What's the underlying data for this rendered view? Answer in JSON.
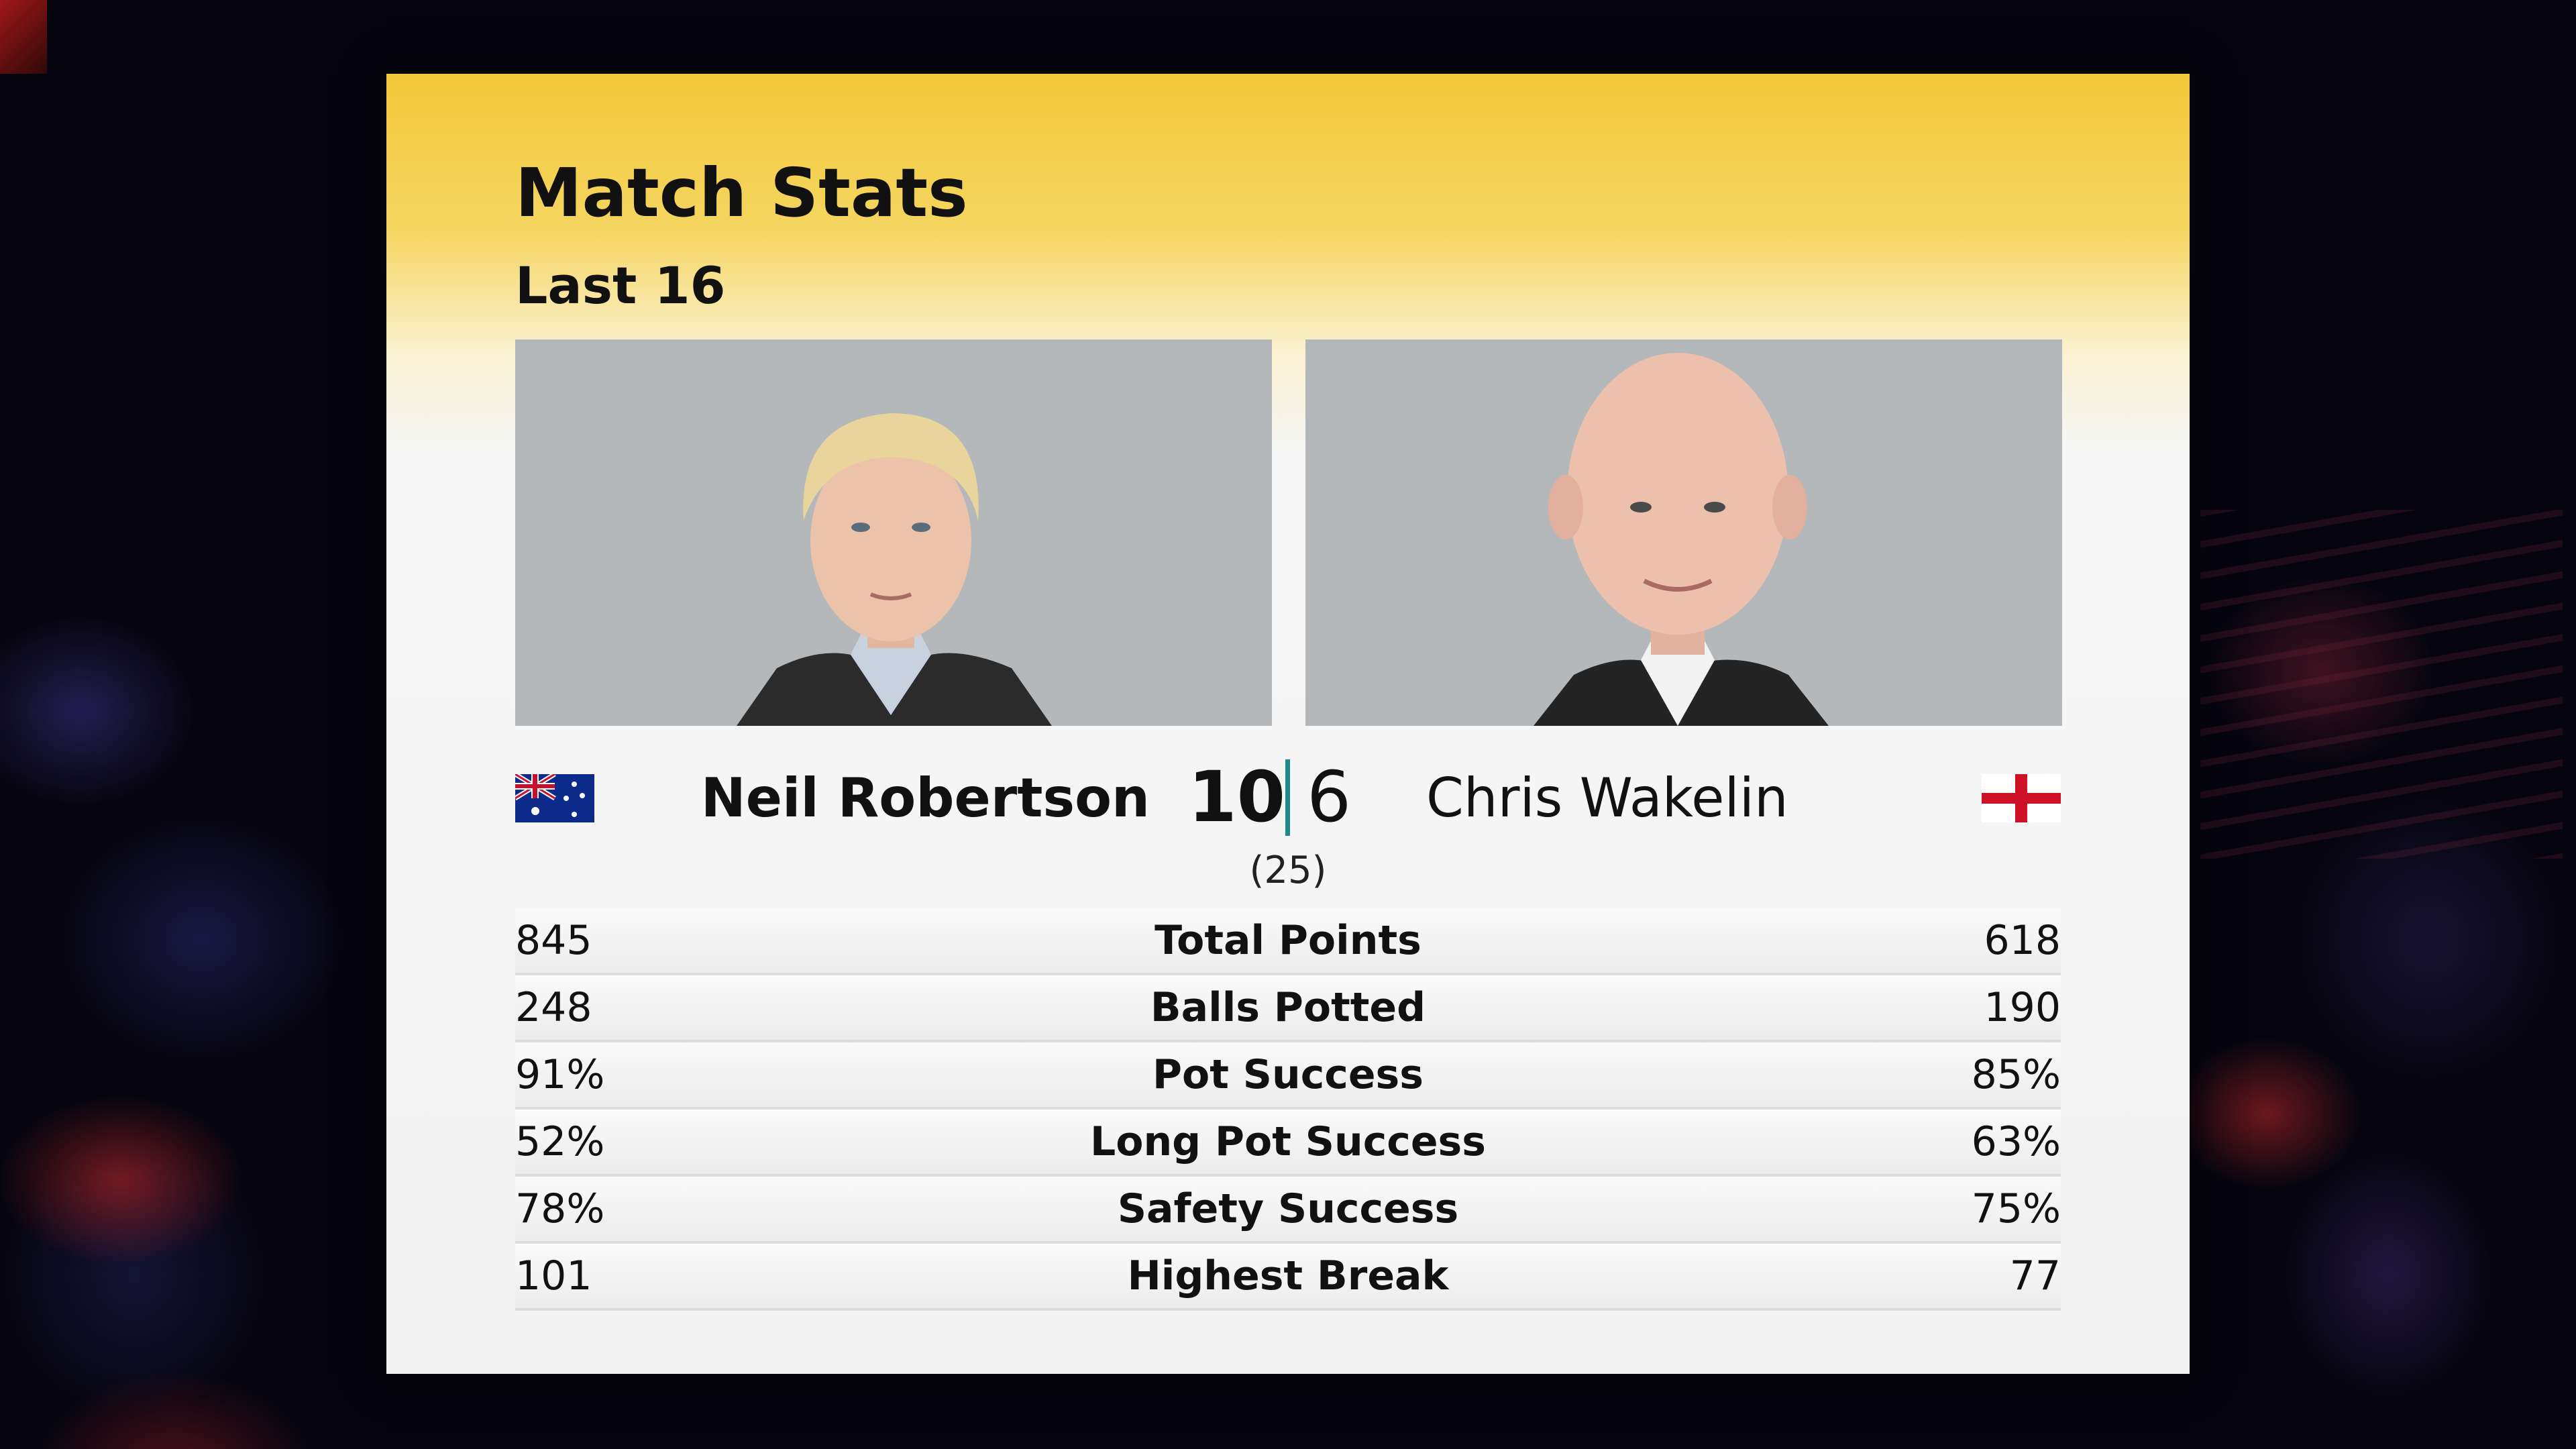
{
  "header": {
    "title": "Match Stats",
    "round": "Last 16"
  },
  "match": {
    "player1": {
      "name": "Neil Robertson",
      "score": "10",
      "flag": "australia-flag"
    },
    "player2": {
      "name": "Chris Wakelin",
      "score": "6",
      "flag": "england-flag"
    },
    "frames_played": "(25)"
  },
  "stats": [
    {
      "label": "Total Points",
      "player1": "845",
      "player2": "618"
    },
    {
      "label": "Balls Potted",
      "player1": "248",
      "player2": "190"
    },
    {
      "label": "Pot Success",
      "player1": "91%",
      "player2": "85%"
    },
    {
      "label": "Long Pot Success",
      "player1": "52%",
      "player2": "63%"
    },
    {
      "label": "Safety Success",
      "player1": "78%",
      "player2": "75%"
    },
    {
      "label": "Highest Break",
      "player1": "101",
      "player2": "77"
    }
  ],
  "colors": {
    "header_gold": "#f3c83a",
    "score_divider": "#1e8a8a",
    "photo_background": "#b5b8bb"
  }
}
